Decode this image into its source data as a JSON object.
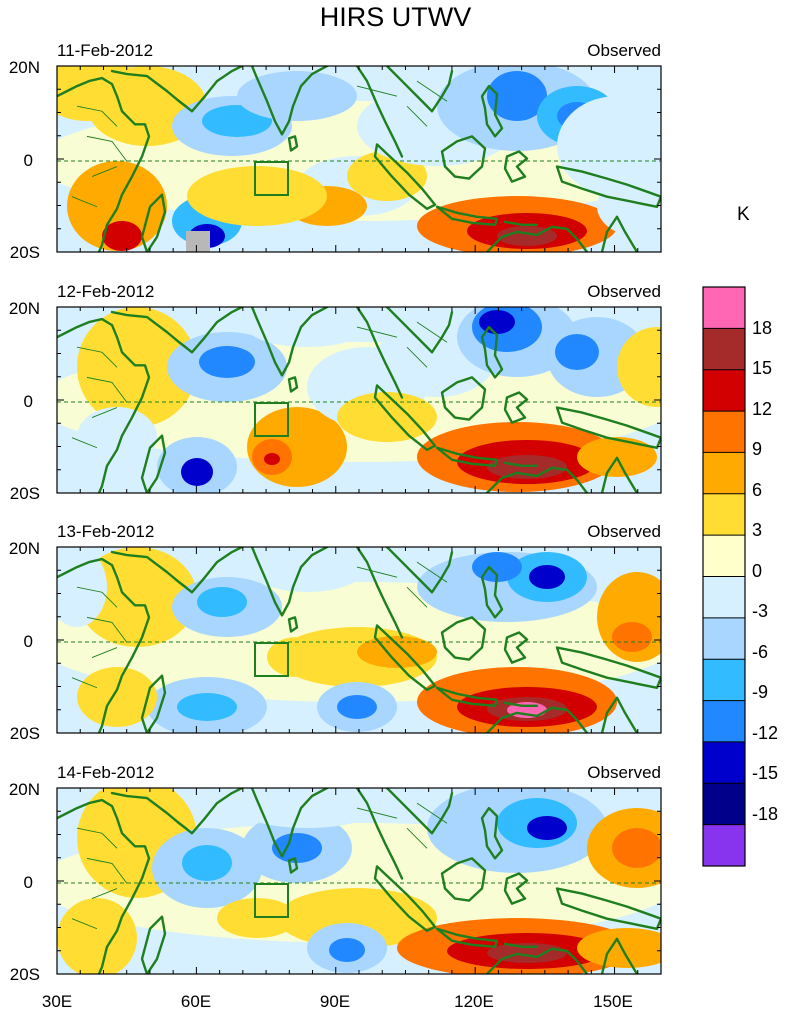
{
  "title": "HIRS UTWV",
  "unit": "K",
  "panels": [
    {
      "date": "11-Feb-2012",
      "source": "Observed"
    },
    {
      "date": "12-Feb-2012",
      "source": "Observed"
    },
    {
      "date": "13-Feb-2012",
      "source": "Observed"
    },
    {
      "date": "14-Feb-2012",
      "source": "Observed"
    }
  ],
  "lat_ticks": [
    "20N",
    "0",
    "20S"
  ],
  "lon_ticks": [
    "30E",
    "60E",
    "90E",
    "120E",
    "150E"
  ],
  "colorbar": {
    "labels": [
      "18",
      "15",
      "12",
      "9",
      "6",
      "3",
      "0",
      "-3",
      "-6",
      "-9",
      "-12",
      "-15",
      "-18"
    ],
    "colors": [
      "#ff66b4",
      "#a52a2a",
      "#d20000",
      "#ff7400",
      "#ffaa00",
      "#ffdd33",
      "#ffffcc",
      "#d6f0ff",
      "#a9d6ff",
      "#33bbff",
      "#2288ff",
      "#0000cc",
      "#00008b",
      "#8833ee"
    ]
  }
}
